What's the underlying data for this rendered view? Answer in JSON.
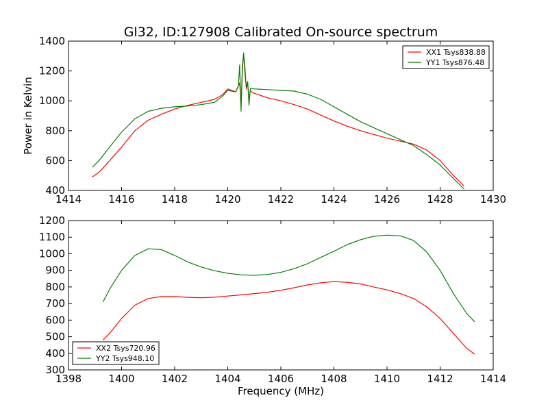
{
  "figure": {
    "title": "Gl32, ID:127908 Calibrated On-source spectrum",
    "xlabel": "Frequency (MHz)",
    "ylabel": "Power in Kelvin"
  },
  "chart_data": [
    {
      "type": "line",
      "panel": "top",
      "xlim": [
        1414,
        1430
      ],
      "ylim": [
        400,
        1400
      ],
      "xticks": [
        1414,
        1416,
        1418,
        1420,
        1422,
        1424,
        1426,
        1428,
        1430
      ],
      "yticks": [
        400,
        600,
        800,
        1000,
        1200,
        1400
      ],
      "grid": false,
      "legend_position": "top-right",
      "series": [
        {
          "name": "XX1 Tsys838.88",
          "color": "#ff0000",
          "x": [
            1414.9,
            1415.2,
            1415.5,
            1416.0,
            1416.5,
            1417.0,
            1417.5,
            1418.0,
            1418.5,
            1419.0,
            1419.5,
            1419.8,
            1420.0,
            1420.3,
            1420.45,
            1420.5,
            1420.55,
            1420.6,
            1420.65,
            1420.7,
            1420.75,
            1420.8,
            1420.85,
            1420.9,
            1421.0,
            1421.5,
            1422.0,
            1422.5,
            1423.0,
            1423.5,
            1424.0,
            1424.5,
            1425.0,
            1425.5,
            1426.0,
            1426.5,
            1427.0,
            1427.5,
            1428.0,
            1428.5,
            1428.9
          ],
          "y": [
            490,
            530,
            590,
            690,
            800,
            870,
            910,
            945,
            970,
            990,
            1010,
            1040,
            1080,
            1060,
            1120,
            960,
            1200,
            1310,
            1220,
            1080,
            1120,
            1000,
            1070,
            1060,
            1050,
            1020,
            1000,
            975,
            945,
            905,
            865,
            830,
            800,
            775,
            750,
            730,
            710,
            670,
            600,
            500,
            430
          ]
        },
        {
          "name": "YY1 Tsys876.48",
          "color": "#008000",
          "x": [
            1414.9,
            1415.2,
            1415.5,
            1416.0,
            1416.5,
            1417.0,
            1417.5,
            1418.0,
            1418.5,
            1419.0,
            1419.5,
            1419.8,
            1420.0,
            1420.3,
            1420.4,
            1420.45,
            1420.5,
            1420.55,
            1420.6,
            1420.65,
            1420.7,
            1420.75,
            1420.8,
            1420.85,
            1420.9,
            1421.0,
            1421.5,
            1422.0,
            1422.5,
            1423.0,
            1423.5,
            1424.0,
            1424.5,
            1425.0,
            1425.5,
            1426.0,
            1426.5,
            1427.0,
            1427.5,
            1428.0,
            1428.5,
            1428.9
          ],
          "y": [
            555,
            610,
            680,
            790,
            880,
            930,
            950,
            960,
            965,
            975,
            990,
            1030,
            1070,
            1060,
            1100,
            1240,
            930,
            1230,
            1320,
            1180,
            1090,
            1130,
            970,
            1080,
            1085,
            1080,
            1075,
            1070,
            1065,
            1045,
            1010,
            960,
            910,
            860,
            820,
            780,
            740,
            700,
            640,
            570,
            480,
            410
          ]
        }
      ]
    },
    {
      "type": "line",
      "panel": "bottom",
      "xlim": [
        1398,
        1414
      ],
      "ylim": [
        300,
        1200
      ],
      "xticks": [
        1398,
        1400,
        1402,
        1404,
        1406,
        1408,
        1410,
        1412,
        1414
      ],
      "yticks": [
        300,
        400,
        500,
        600,
        700,
        800,
        900,
        1000,
        1100,
        1200
      ],
      "grid": false,
      "legend_position": "bottom-left",
      "series": [
        {
          "name": "XX2 Tsys720.96",
          "color": "#ff0000",
          "x": [
            1399.3,
            1399.6,
            1400.0,
            1400.5,
            1401.0,
            1401.5,
            1402.0,
            1402.5,
            1403.0,
            1403.5,
            1404.0,
            1404.5,
            1405.0,
            1405.5,
            1406.0,
            1406.5,
            1407.0,
            1407.5,
            1408.0,
            1408.5,
            1409.0,
            1409.5,
            1410.0,
            1410.5,
            1411.0,
            1411.5,
            1412.0,
            1412.5,
            1413.0,
            1413.3
          ],
          "y": [
            480,
            530,
            610,
            690,
            730,
            742,
            742,
            737,
            735,
            738,
            745,
            752,
            760,
            768,
            780,
            795,
            812,
            825,
            832,
            828,
            818,
            800,
            782,
            760,
            730,
            680,
            610,
            520,
            430,
            395
          ]
        },
        {
          "name": "YY2 Tsys948.10",
          "color": "#008000",
          "x": [
            1399.3,
            1399.6,
            1400.0,
            1400.5,
            1401.0,
            1401.5,
            1402.0,
            1402.5,
            1403.0,
            1403.5,
            1404.0,
            1404.5,
            1405.0,
            1405.5,
            1406.0,
            1406.5,
            1407.0,
            1407.5,
            1408.0,
            1408.5,
            1409.0,
            1409.5,
            1410.0,
            1410.5,
            1411.0,
            1411.5,
            1412.0,
            1412.5,
            1413.0,
            1413.3
          ],
          "y": [
            710,
            800,
            900,
            990,
            1030,
            1025,
            990,
            950,
            920,
            898,
            882,
            873,
            870,
            875,
            888,
            910,
            940,
            978,
            1015,
            1055,
            1085,
            1105,
            1112,
            1108,
            1080,
            1010,
            900,
            760,
            640,
            590
          ]
        }
      ]
    }
  ]
}
